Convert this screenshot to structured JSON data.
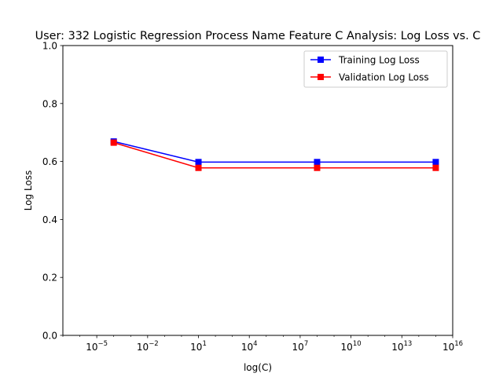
{
  "chart_data": {
    "type": "line",
    "title": "User: 332 Logistic Regression Process Name Feature C Analysis: Log Loss vs. C",
    "xlabel": "log(C)",
    "ylabel": "Log Loss",
    "xscale": "log",
    "xlim": [
      1e-07,
      1e+16
    ],
    "ylim": [
      0,
      1
    ],
    "x": [
      0.0001,
      10,
      100000000,
      1000000000000000
    ],
    "x_ticks": [
      {
        "value": 1e-05,
        "base": "10",
        "exp": "−5"
      },
      {
        "value": 0.01,
        "base": "10",
        "exp": "−2"
      },
      {
        "value": 10,
        "base": "10",
        "exp": "1"
      },
      {
        "value": 10000,
        "base": "10",
        "exp": "4"
      },
      {
        "value": 10000000,
        "base": "10",
        "exp": "7"
      },
      {
        "value": 10000000000,
        "base": "10",
        "exp": "10"
      },
      {
        "value": 10000000000000,
        "base": "10",
        "exp": "13"
      },
      {
        "value": 10000000000000000,
        "base": "10",
        "exp": "16"
      }
    ],
    "y_ticks": [
      "0.0",
      "0.2",
      "0.4",
      "0.6",
      "0.8",
      "1.0"
    ],
    "series": [
      {
        "name": "Training Log Loss",
        "color": "#0000ff",
        "marker": "square",
        "values": [
          0.669,
          0.598,
          0.598,
          0.598
        ]
      },
      {
        "name": "Validation Log Loss",
        "color": "#ff0000",
        "marker": "square",
        "values": [
          0.665,
          0.578,
          0.578,
          0.578
        ]
      }
    ],
    "legend": "top-right",
    "grid": false
  }
}
